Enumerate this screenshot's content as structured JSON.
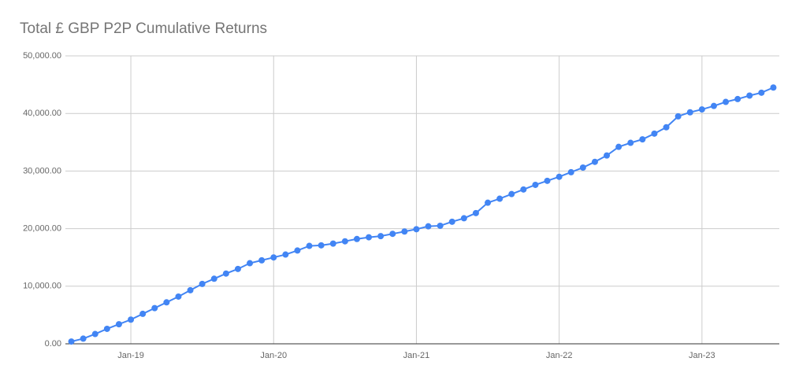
{
  "chart_data": {
    "type": "line",
    "title": "Total £ GBP P2P Cumulative Returns",
    "categories": [
      null,
      null,
      null,
      null,
      null,
      "Jan-19",
      null,
      null,
      null,
      null,
      null,
      null,
      null,
      null,
      null,
      null,
      null,
      "Jan-20",
      null,
      null,
      null,
      null,
      null,
      null,
      null,
      null,
      null,
      null,
      null,
      "Jan-21",
      null,
      null,
      null,
      null,
      null,
      null,
      null,
      null,
      null,
      null,
      null,
      "Jan-22",
      null,
      null,
      null,
      null,
      null,
      null,
      null,
      null,
      null,
      null,
      null,
      "Jan-23",
      null,
      null,
      null,
      null,
      null,
      null
    ],
    "series": [
      {
        "name": "Total",
        "color": "#4285f4",
        "values": [
          400,
          900,
          1700,
          2600,
          3400,
          4200,
          5200,
          6200,
          7200,
          8200,
          9300,
          10400,
          11300,
          12200,
          13000,
          14000,
          14500,
          15000,
          15500,
          16200,
          17000,
          17100,
          17400,
          17800,
          18200,
          18500,
          18700,
          19100,
          19500,
          19900,
          20400,
          20500,
          21200,
          21800,
          22700,
          24500,
          25200,
          26000,
          26800,
          27600,
          28300,
          29000,
          29800,
          30600,
          31600,
          32700,
          34200,
          34900,
          35500,
          36500,
          37600,
          39500,
          40200,
          40700,
          41300,
          42000,
          42500,
          43100,
          43600,
          44500
        ]
      }
    ],
    "ylim": [
      0,
      50000
    ],
    "yticks": [
      {
        "value": 0,
        "label": "0.00"
      },
      {
        "value": 10000,
        "label": "10,000.00"
      },
      {
        "value": 20000,
        "label": "20,000.00"
      },
      {
        "value": 30000,
        "label": "30,000.00"
      },
      {
        "value": 40000,
        "label": "40,000.00"
      },
      {
        "value": 50000,
        "label": "50,000.00"
      }
    ],
    "grid": true
  }
}
